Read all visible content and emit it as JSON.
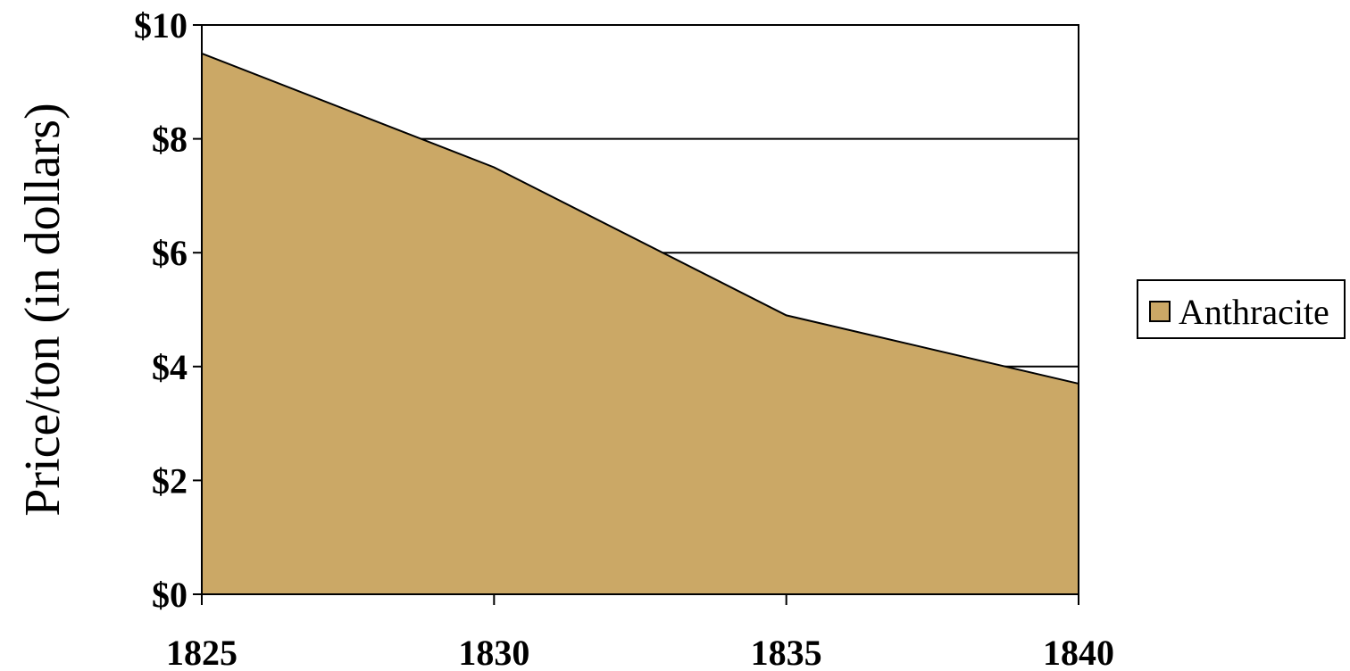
{
  "chart_data": {
    "type": "area",
    "title": "",
    "xlabel": "",
    "ylabel": "Price/ton (in dollars)",
    "x": [
      1825,
      1830,
      1835,
      1840
    ],
    "x_tick_labels": [
      "1825",
      "1830",
      "1835",
      "1840"
    ],
    "ylim": [
      0,
      10
    ],
    "y_ticks": [
      0,
      2,
      4,
      6,
      8,
      10
    ],
    "y_tick_labels": [
      "$0",
      "$2",
      "$4",
      "$6",
      "$8",
      "$10"
    ],
    "series": [
      {
        "name": "Anthracite",
        "values": [
          9.5,
          7.5,
          4.9,
          3.7
        ]
      }
    ],
    "grid": {
      "horizontal": true,
      "vertical": false
    },
    "legend": {
      "position": "right",
      "entries": [
        "Anthracite"
      ]
    },
    "colors": {
      "fill": "#cba866",
      "line": "#000000",
      "grid": "#000000"
    }
  }
}
